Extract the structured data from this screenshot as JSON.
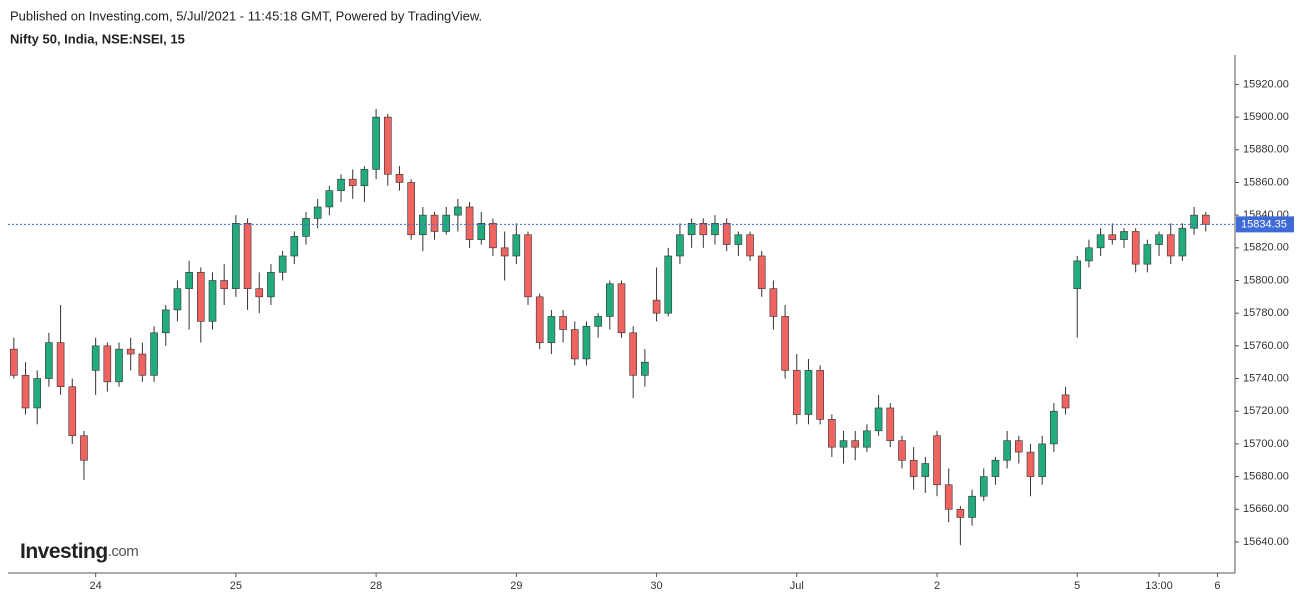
{
  "chart_data": {
    "type": "candlestick",
    "published": "Published on Investing.com, 5/Jul/2021 - 11:45:18 GMT, Powered by TradingView.",
    "title": "Nifty 50, India, NSE:NSEI, 15",
    "watermark": "Investing",
    "watermark_suffix": ".com",
    "up_color": "#22ab7f",
    "down_color": "#ef6461",
    "last_price": 15834.35,
    "last_price_color": "#3e6ad8",
    "ylim": [
      15621,
      15938
    ],
    "yticks": [
      {
        "value": 15640,
        "label": "15640.00"
      },
      {
        "value": 15660,
        "label": "15660.00"
      },
      {
        "value": 15680,
        "label": "15680.00"
      },
      {
        "value": 15700,
        "label": "15700.00"
      },
      {
        "value": 15720,
        "label": "15720.00"
      },
      {
        "value": 15740,
        "label": "15740.00"
      },
      {
        "value": 15760,
        "label": "15760.00"
      },
      {
        "value": 15780,
        "label": "15780.00"
      },
      {
        "value": 15800,
        "label": "15800.00"
      },
      {
        "value": 15820,
        "label": "15820.00"
      },
      {
        "value": 15840,
        "label": "15840.00"
      },
      {
        "value": 15860,
        "label": "15860.00"
      },
      {
        "value": 15880,
        "label": "15880.00"
      },
      {
        "value": 15900,
        "label": "15900.00"
      },
      {
        "value": 15920,
        "label": "15920.00"
      }
    ],
    "categories": [
      null,
      null,
      null,
      null,
      null,
      null,
      null,
      "24",
      null,
      null,
      null,
      null,
      null,
      null,
      null,
      null,
      null,
      null,
      null,
      "25",
      null,
      null,
      null,
      null,
      null,
      null,
      null,
      null,
      null,
      null,
      null,
      "28",
      null,
      null,
      null,
      null,
      null,
      null,
      null,
      null,
      null,
      null,
      null,
      "29",
      null,
      null,
      null,
      null,
      null,
      null,
      null,
      null,
      null,
      null,
      null,
      "30",
      null,
      null,
      null,
      null,
      null,
      null,
      null,
      null,
      null,
      null,
      null,
      "Jul",
      null,
      null,
      null,
      null,
      null,
      null,
      null,
      null,
      null,
      null,
      null,
      "2",
      null,
      null,
      null,
      null,
      null,
      null,
      null,
      null,
      null,
      null,
      null,
      "5",
      null,
      null,
      null,
      null,
      null,
      null,
      "13:00",
      null,
      null,
      null,
      null,
      "6",
      null
    ],
    "open": [
      15758,
      15742,
      15722,
      15740,
      15762,
      15735,
      15705,
      15745,
      15760,
      15738,
      15758,
      15755,
      15742,
      15768,
      15782,
      15795,
      15805,
      15775,
      15800,
      15795,
      15835,
      15795,
      15790,
      15805,
      15815,
      15827,
      15838,
      15845,
      15855,
      15862,
      15858,
      15868,
      15900,
      15865,
      15860,
      15828,
      15840,
      15830,
      15840,
      15845,
      15825,
      15835,
      15820,
      15815,
      15828,
      15790,
      15762,
      15778,
      15770,
      15752,
      15772,
      15778,
      15798,
      15768,
      15742,
      15788,
      15780,
      15815,
      15828,
      15835,
      15828,
      15835,
      15822,
      15828,
      15815,
      15795,
      15778,
      15745,
      15718,
      15745,
      15715,
      15698,
      15702,
      15698,
      15708,
      15722,
      15702,
      15690,
      15680,
      15705,
      15675,
      15660,
      15655,
      15668,
      15680,
      15690,
      15702,
      15695,
      15680,
      15700,
      15730,
      15795,
      15812,
      15820,
      15828,
      15825,
      15830,
      15810,
      15822,
      15828,
      15815,
      15832,
      15840,
      null,
      null
    ],
    "high": [
      15765,
      15750,
      15745,
      15768,
      15785,
      15740,
      15708,
      15765,
      15762,
      15762,
      15765,
      15762,
      15772,
      15785,
      15800,
      15812,
      15808,
      15805,
      15810,
      15840,
      15838,
      15805,
      15810,
      15818,
      15830,
      15842,
      15850,
      15858,
      15865,
      15868,
      15870,
      15905,
      15902,
      15870,
      15862,
      15845,
      15842,
      15845,
      15850,
      15848,
      15842,
      15838,
      15830,
      15835,
      15830,
      15792,
      15782,
      15782,
      15775,
      15775,
      15780,
      15800,
      15800,
      15772,
      15758,
      15808,
      15820,
      15835,
      15838,
      15838,
      15840,
      15838,
      15830,
      15830,
      15818,
      15800,
      15785,
      15755,
      15752,
      15748,
      15718,
      15708,
      15708,
      15712,
      15730,
      15725,
      15705,
      15698,
      15692,
      15708,
      15685,
      15662,
      15672,
      15685,
      15692,
      15708,
      15705,
      15700,
      15705,
      15725,
      15735,
      15815,
      15825,
      15832,
      15835,
      15832,
      15832,
      15825,
      15830,
      15835,
      15835,
      15845,
      15842,
      null,
      null
    ],
    "low": [
      15740,
      15718,
      15712,
      15735,
      15730,
      15700,
      15678,
      15730,
      15732,
      15735,
      15745,
      15738,
      15738,
      15760,
      15775,
      15770,
      15762,
      15770,
      15785,
      15790,
      15782,
      15780,
      15785,
      15800,
      15810,
      15822,
      15832,
      15840,
      15848,
      15850,
      15848,
      15862,
      15858,
      15855,
      15825,
      15818,
      15825,
      15828,
      15830,
      15820,
      15822,
      15815,
      15800,
      15810,
      15785,
      15758,
      15755,
      15762,
      15748,
      15748,
      15765,
      15770,
      15765,
      15728,
      15735,
      15775,
      15778,
      15810,
      15820,
      15820,
      15822,
      15818,
      15815,
      15812,
      15790,
      15770,
      15740,
      15712,
      15712,
      15712,
      15692,
      15688,
      15690,
      15695,
      15705,
      15698,
      15685,
      15672,
      15670,
      15668,
      15652,
      15638,
      15650,
      15665,
      15675,
      15685,
      15688,
      15668,
      15675,
      15695,
      15718,
      15765,
      15808,
      15815,
      15822,
      15820,
      15805,
      15805,
      15815,
      15810,
      15812,
      15828,
      15830,
      null,
      null
    ],
    "close": [
      15742,
      15722,
      15740,
      15762,
      15735,
      15705,
      15690,
      15760,
      15738,
      15758,
      15755,
      15742,
      15768,
      15782,
      15795,
      15805,
      15775,
      15800,
      15795,
      15835,
      15795,
      15790,
      15805,
      15815,
      15827,
      15838,
      15845,
      15855,
      15862,
      15858,
      15868,
      15900,
      15865,
      15860,
      15828,
      15840,
      15830,
      15840,
      15845,
      15825,
      15835,
      15820,
      15815,
      15828,
      15790,
      15762,
      15778,
      15770,
      15752,
      15772,
      15778,
      15798,
      15768,
      15742,
      15750,
      15780,
      15815,
      15828,
      15835,
      15828,
      15835,
      15822,
      15828,
      15815,
      15795,
      15778,
      15745,
      15718,
      15745,
      15715,
      15698,
      15702,
      15698,
      15708,
      15722,
      15702,
      15690,
      15680,
      15688,
      15675,
      15660,
      15655,
      15668,
      15680,
      15690,
      15702,
      15695,
      15680,
      15700,
      15720,
      15722,
      15812,
      15820,
      15828,
      15825,
      15830,
      15810,
      15822,
      15828,
      15815,
      15832,
      15840,
      15834.35,
      null,
      null
    ]
  }
}
